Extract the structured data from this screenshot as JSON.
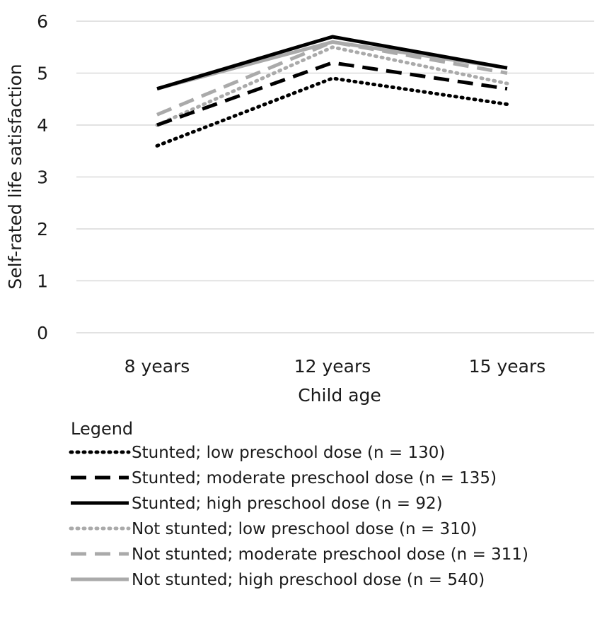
{
  "chart_data": {
    "type": "line",
    "title": "",
    "xlabel": "Child age",
    "ylabel": "Self-rated life satisfaction",
    "categories": [
      "8 years",
      "12 years",
      "15 years"
    ],
    "ylim": [
      0,
      6
    ],
    "yticks": [
      "0",
      "1",
      "2",
      "3",
      "4",
      "5",
      "6"
    ],
    "grid": true,
    "legend_title": "Legend",
    "legend_position": "bottom",
    "series": [
      {
        "name": "Stunted; low preschool dose (n = 130)",
        "values": [
          3.6,
          4.9,
          4.4
        ],
        "color": "#000000",
        "style": "dotted"
      },
      {
        "name": "Stunted; moderate preschool dose (n = 135)",
        "values": [
          4.0,
          5.2,
          4.7
        ],
        "color": "#000000",
        "style": "dashed"
      },
      {
        "name": "Stunted; high preschool dose (n = 92)",
        "values": [
          4.7,
          5.7,
          5.1
        ],
        "color": "#000000",
        "style": "solid"
      },
      {
        "name": "Not stunted; low preschool dose (n = 310)",
        "values": [
          4.0,
          5.5,
          4.8
        ],
        "color": "#aaaaaa",
        "style": "dotted"
      },
      {
        "name": "Not stunted; moderate preschool dose (n = 311)",
        "values": [
          4.2,
          5.6,
          5.0
        ],
        "color": "#aaaaaa",
        "style": "dashed"
      },
      {
        "name": "Not stunted; high preschool dose (n = 540)",
        "values": [
          4.7,
          5.6,
          5.1
        ],
        "color": "#aaaaaa",
        "style": "solid"
      }
    ]
  }
}
